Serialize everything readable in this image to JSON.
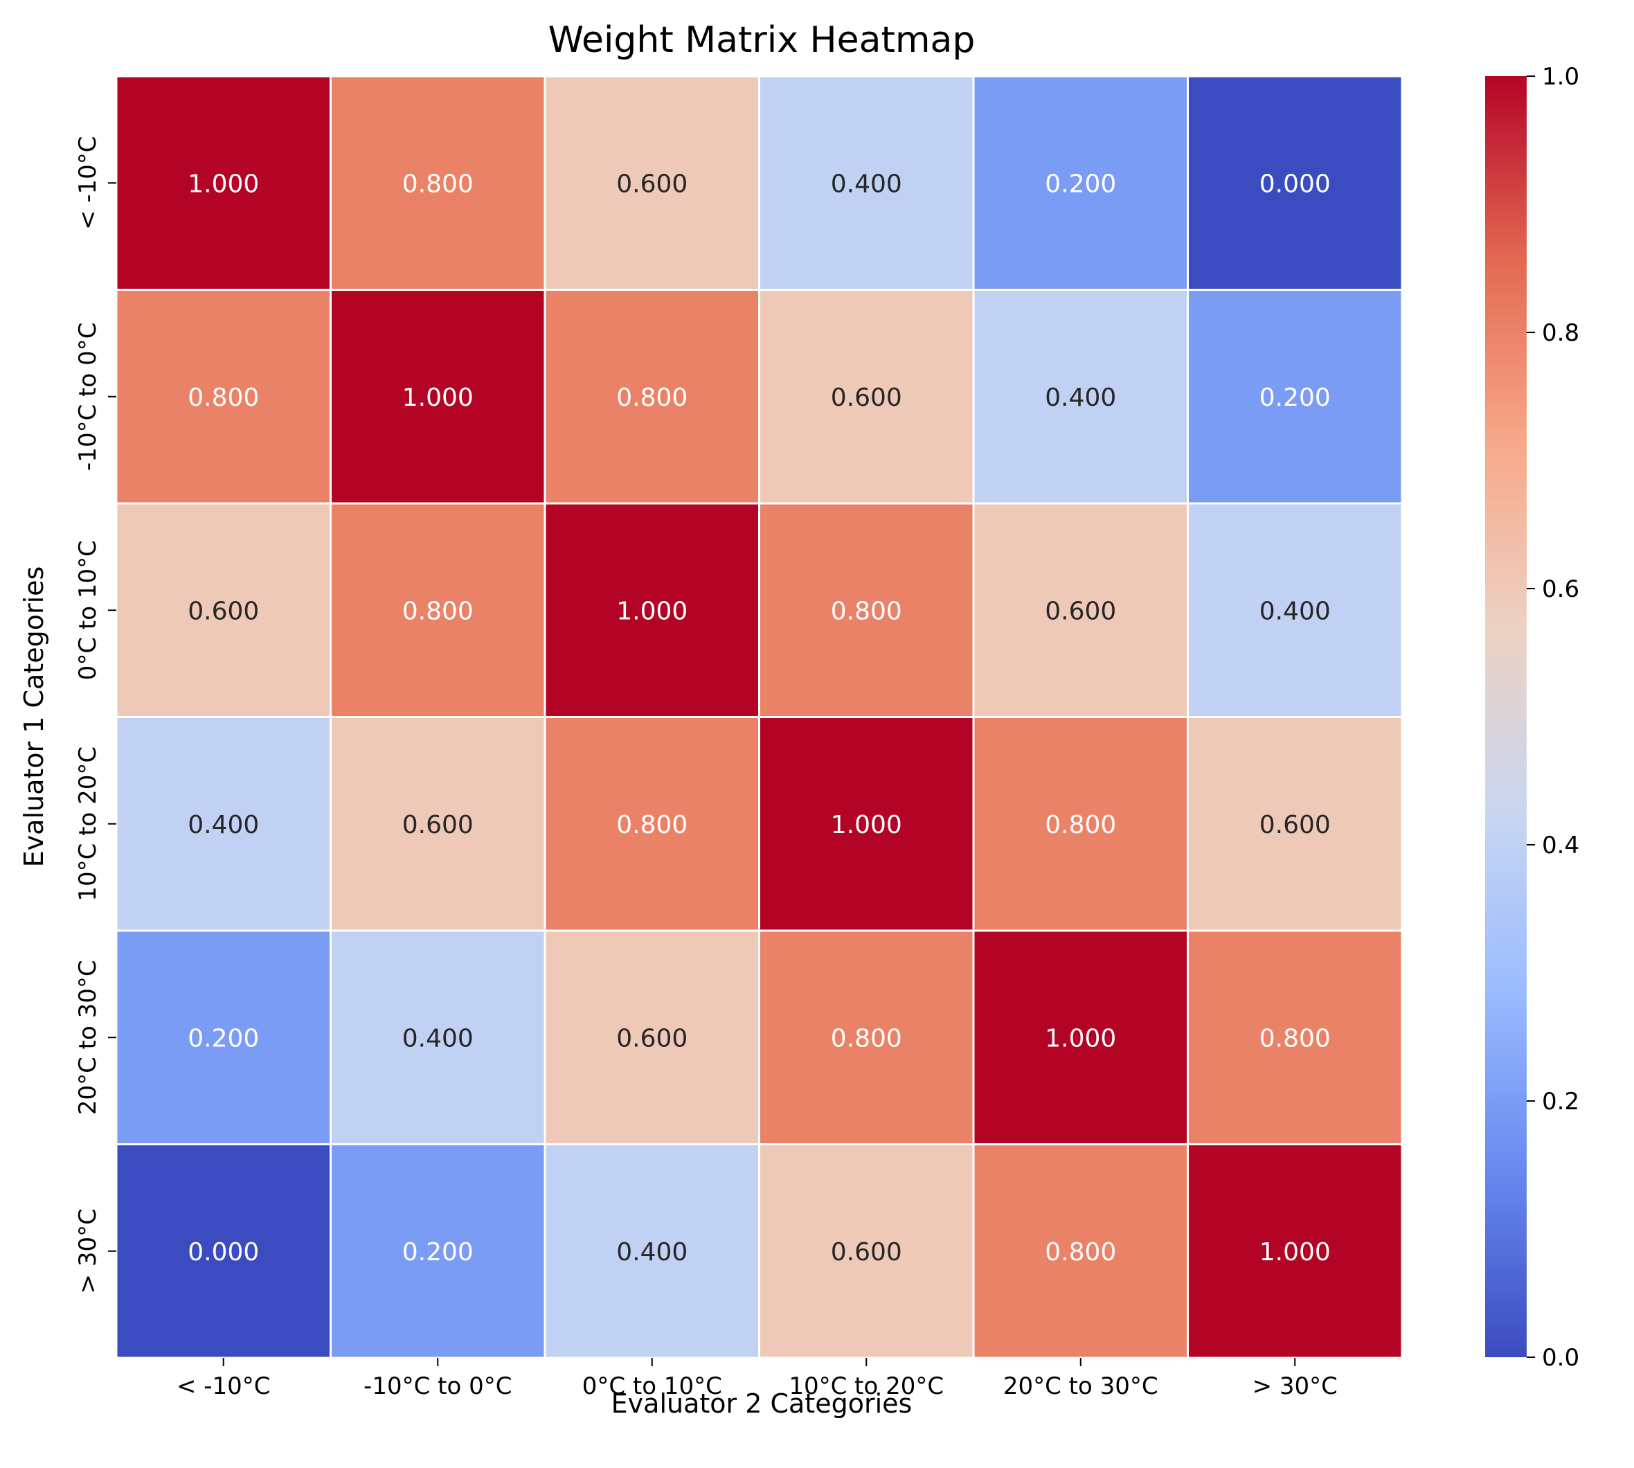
{
  "chart_data": {
    "type": "heatmap",
    "title": "Weight Matrix Heatmap",
    "xlabel": "Evaluator 2 Categories",
    "ylabel": "Evaluator 1 Categories",
    "x_categories": [
      "< -10°C",
      "-10°C to 0°C",
      "0°C to 10°C",
      "10°C to 20°C",
      "20°C to 30°C",
      "> 30°C"
    ],
    "y_categories": [
      "< -10°C",
      "-10°C to 0°C",
      "0°C to 10°C",
      "10°C to 20°C",
      "20°C to 30°C",
      "> 30°C"
    ],
    "values": [
      [
        1.0,
        0.8,
        0.6,
        0.4,
        0.2,
        0.0
      ],
      [
        0.8,
        1.0,
        0.8,
        0.6,
        0.4,
        0.2
      ],
      [
        0.6,
        0.8,
        1.0,
        0.8,
        0.6,
        0.4
      ],
      [
        0.4,
        0.6,
        0.8,
        1.0,
        0.8,
        0.6
      ],
      [
        0.2,
        0.4,
        0.6,
        0.8,
        1.0,
        0.8
      ],
      [
        0.0,
        0.2,
        0.4,
        0.6,
        0.8,
        1.0
      ]
    ],
    "value_format_decimals": 3,
    "colormap": "coolwarm",
    "vmin": 0.0,
    "vmax": 1.0,
    "colorbar": {
      "ticks": [
        0.0,
        0.2,
        0.4,
        0.6,
        0.8,
        1.0
      ],
      "tick_labels": [
        "0.0",
        "0.2",
        "0.4",
        "0.6",
        "0.8",
        "1.0"
      ],
      "placement": "right"
    },
    "colors": {
      "coolwarm_stops": [
        "#3b4cc0",
        "#6788ee",
        "#9abbff",
        "#c9d7f0",
        "#edd1c2",
        "#f7a889",
        "#e26952",
        "#b40426"
      ],
      "cell_border": "#ffffff",
      "text_light": "#ffffff",
      "text_dark": "#262626"
    }
  }
}
